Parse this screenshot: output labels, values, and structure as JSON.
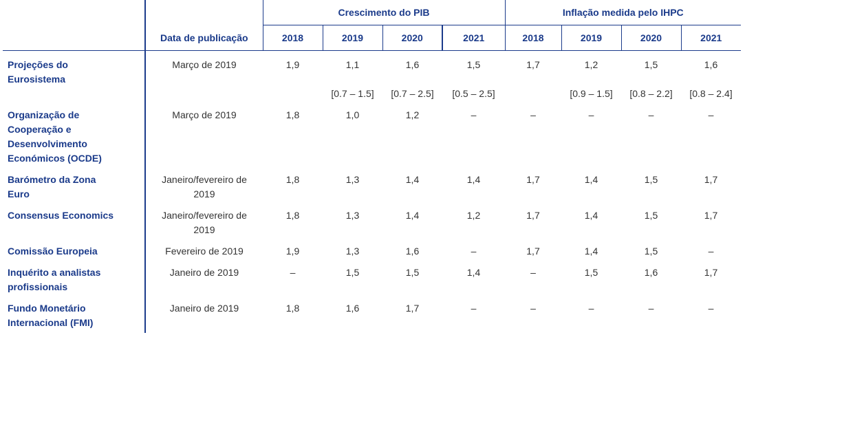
{
  "header": {
    "date_col": "Data de publicação",
    "group_gdp": "Crescimento do PIB",
    "group_hicp": "Inflação medida pelo IHPC",
    "years": [
      "2018",
      "2019",
      "2020",
      "2021"
    ]
  },
  "rows": [
    {
      "label": "Projeções do Eurosistema",
      "date": "Março de 2019",
      "gdp": [
        "1,9",
        "1,1",
        "1,6",
        "1,5"
      ],
      "hicp": [
        "1,7",
        "1,2",
        "1,5",
        "1,6"
      ]
    },
    {
      "label": "",
      "date": "",
      "gdp": [
        "",
        "[0.7 – 1.5]",
        "[0.7 – 2.5]",
        "[0.5 – 2.5]"
      ],
      "hicp": [
        "",
        "[0.9 – 1.5]",
        "[0.8 – 2.2]",
        "[0.8 – 2.4]"
      ]
    },
    {
      "label": "Organização de Cooperação e Desenvolvimento Económicos (OCDE)",
      "date": "Março de 2019",
      "gdp": [
        "1,8",
        "1,0",
        "1,2",
        "–"
      ],
      "hicp": [
        "–",
        "–",
        "–",
        "–"
      ]
    },
    {
      "label": "Barómetro da Zona Euro",
      "date": "Janeiro/fevereiro de 2019",
      "gdp": [
        "1,8",
        "1,3",
        "1,4",
        "1,4"
      ],
      "hicp": [
        "1,7",
        "1,4",
        "1,5",
        "1,7"
      ]
    },
    {
      "label": "Consensus Economics",
      "date": "Janeiro/fevereiro de 2019",
      "gdp": [
        "1,8",
        "1,3",
        "1,4",
        "1,2"
      ],
      "hicp": [
        "1,7",
        "1,4",
        "1,5",
        "1,7"
      ]
    },
    {
      "label": "Comissão Europeia",
      "date": "Fevereiro de 2019",
      "gdp": [
        "1,9",
        "1,3",
        "1,6",
        "–"
      ],
      "hicp": [
        "1,7",
        "1,4",
        "1,5",
        "–"
      ]
    },
    {
      "label": "Inquérito a analistas profissionais",
      "date": "Janeiro de 2019",
      "gdp": [
        "–",
        "1,5",
        "1,5",
        "1,4"
      ],
      "hicp": [
        "–",
        "1,5",
        "1,6",
        "1,7"
      ]
    },
    {
      "label": "Fundo Monetário Internacional (FMI)",
      "date": "Janeiro de 2019",
      "gdp": [
        "1,8",
        "1,6",
        "1,7",
        "–"
      ],
      "hicp": [
        "–",
        "–",
        "–",
        "–"
      ]
    }
  ],
  "colors": {
    "accent": "#1a3a8a",
    "text": "#333333"
  }
}
